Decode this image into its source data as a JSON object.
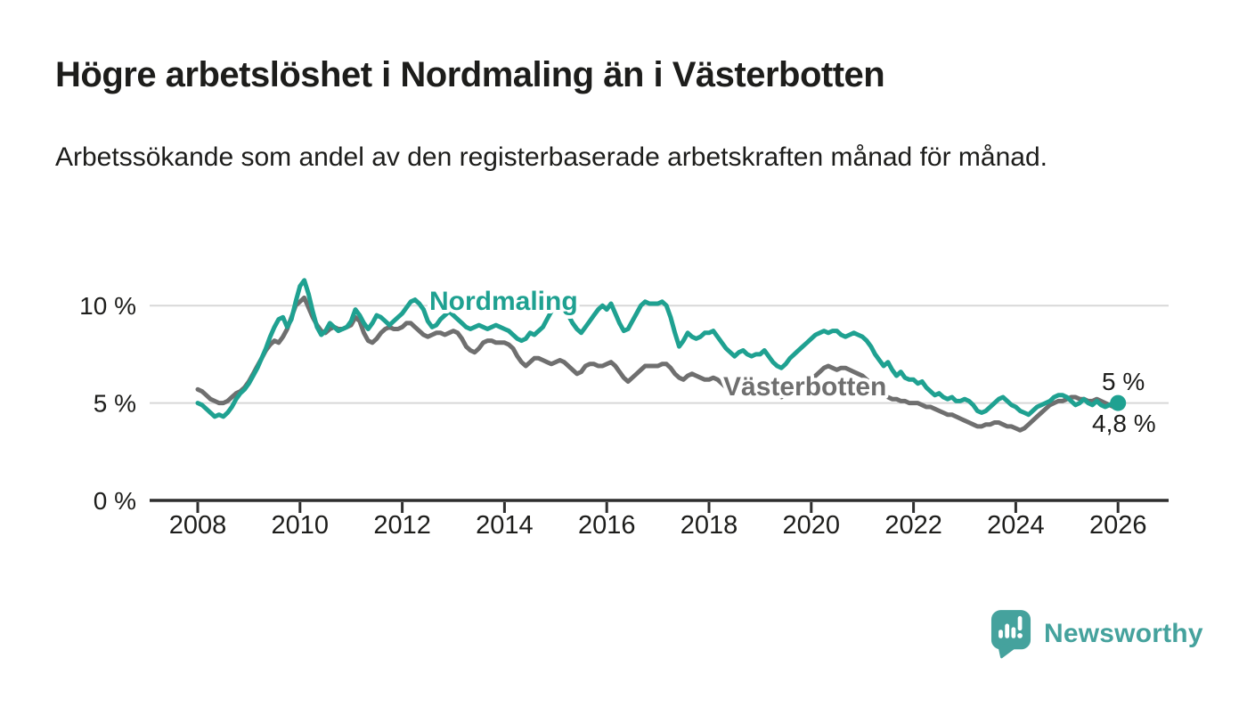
{
  "header": {
    "title": "Högre arbetslöshet i Nordmaling än i Västerbotten",
    "subtitle": "Arbetssökande som andel av den registerbaserade arbetskraften månad för månad."
  },
  "branding": {
    "logo_text": "Newsworthy",
    "logo_icon": "bar-chart-pin-icon",
    "brand_color": "#45a29d"
  },
  "colors": {
    "nordmaling": "#1fa191",
    "vasterbotten": "#6f6f6f",
    "grid": "#d8d8d8",
    "axis": "#2e2e2e",
    "text": "#1d1d1b"
  },
  "chart_data": {
    "type": "line",
    "title": "Högre arbetslöshet i Nordmaling än i Västerbotten",
    "subtitle": "Arbetssökande som andel av den registerbaserade arbetskraften månad för månad.",
    "x_unit": "month",
    "x_start_year": 2008,
    "x_end_year": 2026,
    "xlim": [
      2007.05,
      2027.0
    ],
    "ylim": [
      0,
      11.8
    ],
    "grid": "horizontal",
    "legend_position": "inline-labels",
    "x_ticks": [
      "2008",
      "2010",
      "2012",
      "2014",
      "2016",
      "2018",
      "2020",
      "2022",
      "2024",
      "2026"
    ],
    "x_tick_years": [
      2008,
      2010,
      2012,
      2014,
      2016,
      2018,
      2020,
      2022,
      2024,
      2026
    ],
    "y_ticks": [
      {
        "label": "0 %",
        "value": 0
      },
      {
        "label": "5 %",
        "value": 5
      },
      {
        "label": "10 %",
        "value": 10
      }
    ],
    "annotations": {
      "nordmaling_end_label": "5 %",
      "vasterbotten_end_label": "4,8 %",
      "end_marker": "dot-on-last-nordmaling-point"
    },
    "series": [
      {
        "name": "Nordmaling",
        "color": "#1fa191",
        "values": [
          5.0,
          4.9,
          4.7,
          4.5,
          4.3,
          4.4,
          4.3,
          4.5,
          4.8,
          5.2,
          5.5,
          5.7,
          6.0,
          6.4,
          6.8,
          7.3,
          7.8,
          8.4,
          8.9,
          9.3,
          9.4,
          8.9,
          9.3,
          10.2,
          11.0,
          11.3,
          10.6,
          9.7,
          8.9,
          8.5,
          8.7,
          9.1,
          8.9,
          8.7,
          8.8,
          8.9,
          9.2,
          9.8,
          9.5,
          9.1,
          8.8,
          9.1,
          9.5,
          9.4,
          9.2,
          9.0,
          9.2,
          9.4,
          9.6,
          9.9,
          10.2,
          10.3,
          10.1,
          9.8,
          9.2,
          8.9,
          9.0,
          9.3,
          9.5,
          9.7,
          9.5,
          9.3,
          9.1,
          8.9,
          8.8,
          8.9,
          9.0,
          8.9,
          8.8,
          8.9,
          9.0,
          8.9,
          8.8,
          8.7,
          8.5,
          8.3,
          8.2,
          8.3,
          8.6,
          8.5,
          8.7,
          8.9,
          9.3,
          9.7,
          10.0,
          10.2,
          9.9,
          9.5,
          9.1,
          8.8,
          8.6,
          8.9,
          9.2,
          9.5,
          9.8,
          10.0,
          9.8,
          10.1,
          9.6,
          9.1,
          8.7,
          8.8,
          9.2,
          9.6,
          10.0,
          10.2,
          10.1,
          10.1,
          10.1,
          10.2,
          10.0,
          9.4,
          8.6,
          7.9,
          8.2,
          8.6,
          8.4,
          8.3,
          8.4,
          8.6,
          8.6,
          8.7,
          8.4,
          8.1,
          7.8,
          7.6,
          7.4,
          7.6,
          7.7,
          7.5,
          7.4,
          7.5,
          7.5,
          7.7,
          7.4,
          7.1,
          6.9,
          6.8,
          7.0,
          7.3,
          7.5,
          7.7,
          7.9,
          8.1,
          8.3,
          8.5,
          8.6,
          8.7,
          8.6,
          8.7,
          8.7,
          8.5,
          8.4,
          8.5,
          8.6,
          8.5,
          8.4,
          8.2,
          7.9,
          7.5,
          7.2,
          6.9,
          7.1,
          6.7,
          6.4,
          6.6,
          6.3,
          6.2,
          6.2,
          6.0,
          6.1,
          5.8,
          5.6,
          5.4,
          5.5,
          5.3,
          5.2,
          5.3,
          5.1,
          5.1,
          5.2,
          5.1,
          4.9,
          4.6,
          4.5,
          4.6,
          4.8,
          5.0,
          5.2,
          5.3,
          5.1,
          4.9,
          4.8,
          4.6,
          4.5,
          4.4,
          4.6,
          4.8,
          4.9,
          5.0,
          5.1,
          5.3,
          5.4,
          5.4,
          5.3,
          5.1,
          4.9,
          5.0,
          5.2,
          5.0,
          4.9,
          5.1,
          4.9,
          4.8,
          4.9,
          5.0,
          5.0
        ]
      },
      {
        "name": "Västerbotten",
        "color": "#6f6f6f",
        "values": [
          5.7,
          5.6,
          5.4,
          5.2,
          5.1,
          5.0,
          5.0,
          5.1,
          5.3,
          5.5,
          5.6,
          5.8,
          6.1,
          6.5,
          6.9,
          7.3,
          7.7,
          8.0,
          8.2,
          8.1,
          8.4,
          8.8,
          9.4,
          10.0,
          10.2,
          10.4,
          9.9,
          9.4,
          9.0,
          8.7,
          8.6,
          8.8,
          8.9,
          8.8,
          8.8,
          8.9,
          9.0,
          9.4,
          9.2,
          8.6,
          8.2,
          8.1,
          8.3,
          8.6,
          8.8,
          8.9,
          8.8,
          8.8,
          8.9,
          9.1,
          9.1,
          8.9,
          8.7,
          8.5,
          8.4,
          8.5,
          8.6,
          8.6,
          8.5,
          8.6,
          8.7,
          8.6,
          8.3,
          7.9,
          7.7,
          7.6,
          7.8,
          8.1,
          8.2,
          8.2,
          8.1,
          8.1,
          8.1,
          8.0,
          7.8,
          7.4,
          7.1,
          6.9,
          7.1,
          7.3,
          7.3,
          7.2,
          7.1,
          7.0,
          7.1,
          7.2,
          7.1,
          6.9,
          6.7,
          6.5,
          6.6,
          6.9,
          7.0,
          7.0,
          6.9,
          6.9,
          7.0,
          7.1,
          6.9,
          6.6,
          6.3,
          6.1,
          6.3,
          6.5,
          6.7,
          6.9,
          6.9,
          6.9,
          6.9,
          7.0,
          7.0,
          6.8,
          6.5,
          6.3,
          6.2,
          6.4,
          6.5,
          6.4,
          6.3,
          6.2,
          6.2,
          6.3,
          6.2,
          6.0,
          5.8,
          5.7,
          5.6,
          5.8,
          5.9,
          6.0,
          5.9,
          5.8,
          5.8,
          5.9,
          5.8,
          5.6,
          5.4,
          5.3,
          5.4,
          5.6,
          5.7,
          5.7,
          5.8,
          6.0,
          6.2,
          6.4,
          6.6,
          6.8,
          6.9,
          6.8,
          6.7,
          6.8,
          6.8,
          6.7,
          6.6,
          6.5,
          6.4,
          6.2,
          6.0,
          5.8,
          5.6,
          5.4,
          5.3,
          5.2,
          5.2,
          5.1,
          5.1,
          5.0,
          5.0,
          5.0,
          4.9,
          4.8,
          4.8,
          4.7,
          4.6,
          4.5,
          4.4,
          4.4,
          4.3,
          4.2,
          4.1,
          4.0,
          3.9,
          3.8,
          3.8,
          3.9,
          3.9,
          4.0,
          4.0,
          3.9,
          3.8,
          3.8,
          3.7,
          3.6,
          3.7,
          3.9,
          4.1,
          4.3,
          4.5,
          4.7,
          4.9,
          5.0,
          5.1,
          5.1,
          5.2,
          5.3,
          5.3,
          5.2,
          5.2,
          5.1,
          5.1,
          5.2,
          5.1,
          5.0,
          4.9,
          4.8,
          4.8
        ]
      }
    ]
  }
}
